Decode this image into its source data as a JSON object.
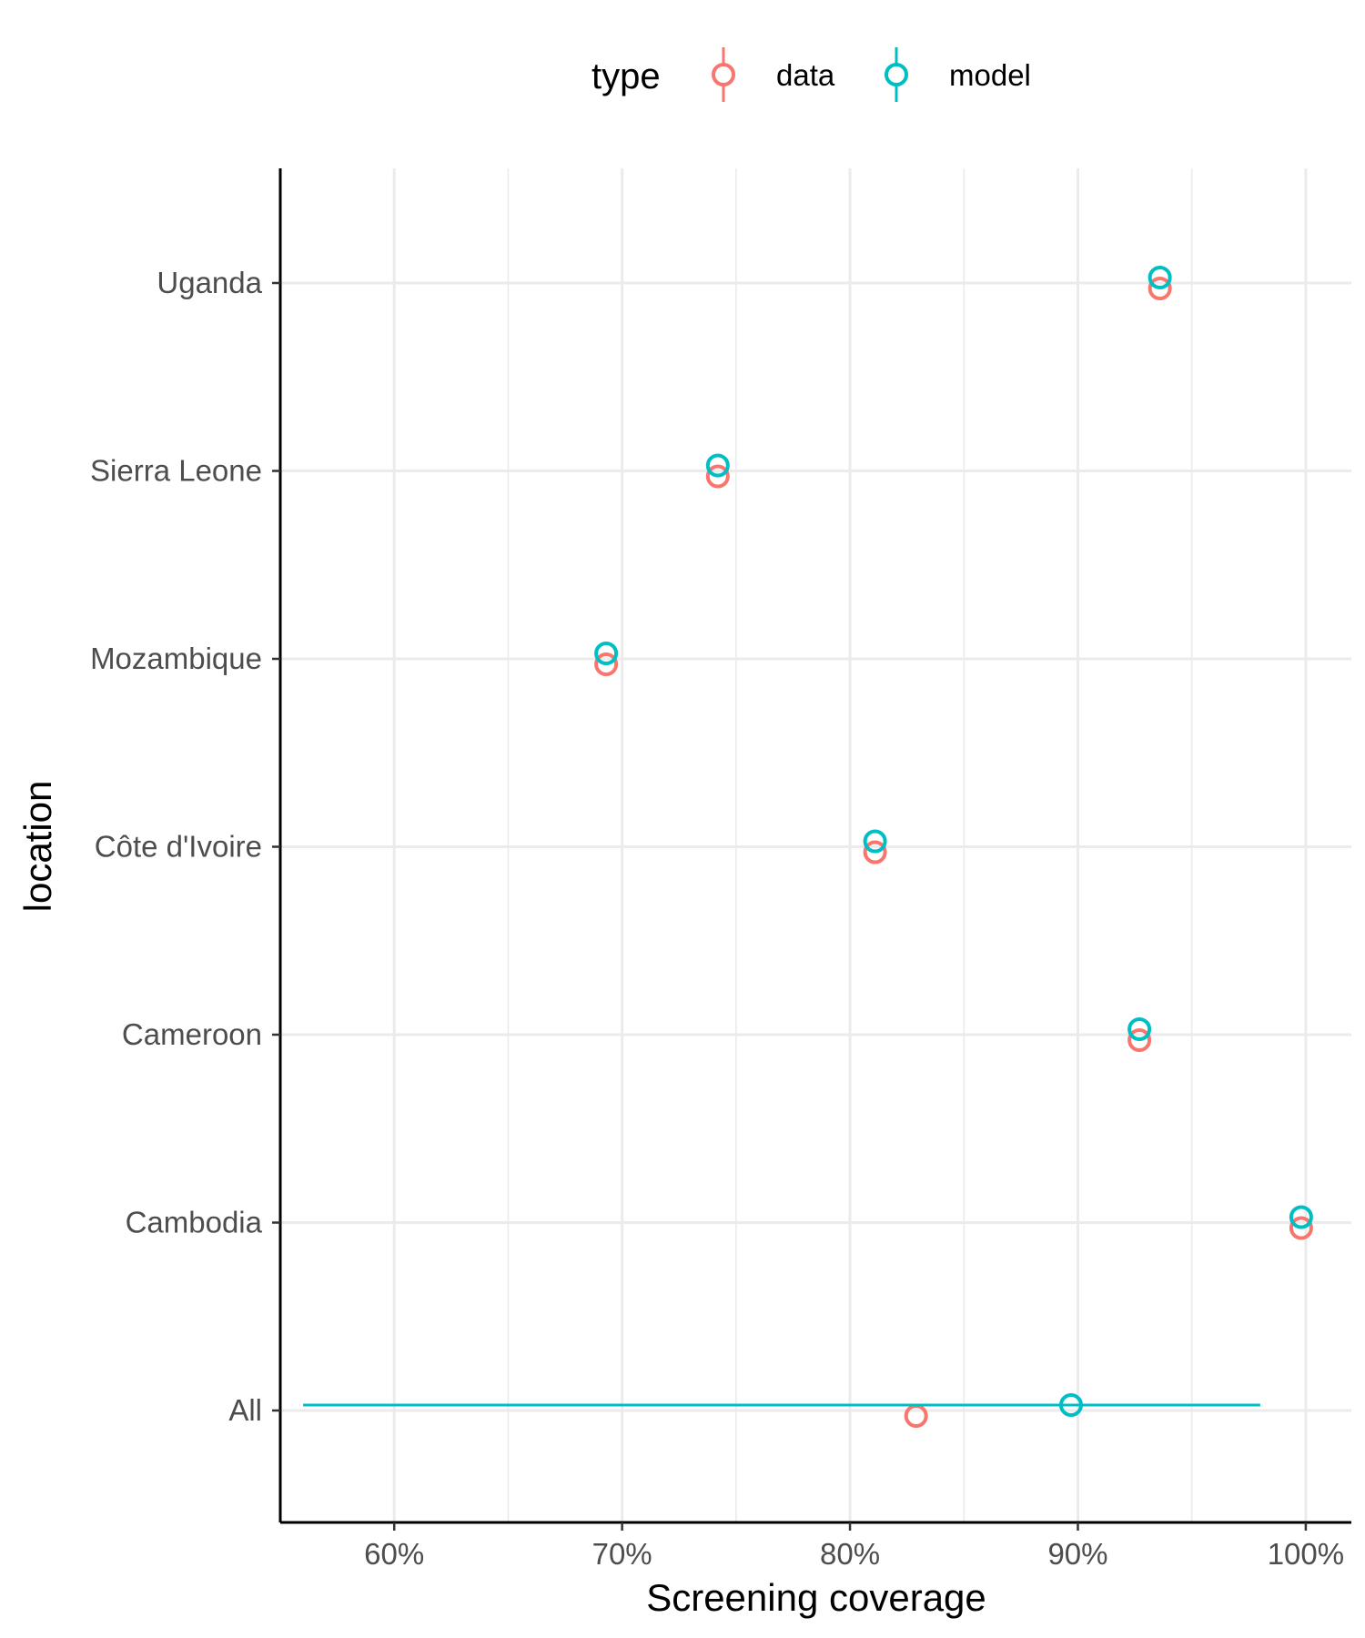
{
  "chart_data": {
    "type": "scatter",
    "orientation": "horizontal",
    "xlabel": "Screening coverage",
    "ylabel": "location",
    "xlim": [
      0.55,
      1.02
    ],
    "x_ticks": [
      0.6,
      0.7,
      0.8,
      0.9,
      1.0
    ],
    "x_tick_labels": [
      "60%",
      "70%",
      "80%",
      "90%",
      "100%"
    ],
    "categories": [
      "All",
      "Cambodia",
      "Cameroon",
      "Côte d'Ivoire",
      "Mozambique",
      "Sierra Leone",
      "Uganda"
    ],
    "grid": true,
    "legend": {
      "title": "type",
      "position": "top"
    },
    "series": [
      {
        "name": "data",
        "color": "#F8766D",
        "points": [
          {
            "location": "All",
            "value": 0.829
          },
          {
            "location": "Cambodia",
            "value": 0.998
          },
          {
            "location": "Cameroon",
            "value": 0.927
          },
          {
            "location": "Côte d'Ivoire",
            "value": 0.811
          },
          {
            "location": "Mozambique",
            "value": 0.693
          },
          {
            "location": "Sierra Leone",
            "value": 0.742
          },
          {
            "location": "Uganda",
            "value": 0.936
          }
        ]
      },
      {
        "name": "model",
        "color": "#00BFC4",
        "points": [
          {
            "location": "All",
            "value": 0.897,
            "lower": 0.56,
            "upper": 0.98
          },
          {
            "location": "Cambodia",
            "value": 0.998
          },
          {
            "location": "Cameroon",
            "value": 0.927
          },
          {
            "location": "Côte d'Ivoire",
            "value": 0.811
          },
          {
            "location": "Mozambique",
            "value": 0.693
          },
          {
            "location": "Sierra Leone",
            "value": 0.742
          },
          {
            "location": "Uganda",
            "value": 0.936
          }
        ]
      }
    ]
  }
}
